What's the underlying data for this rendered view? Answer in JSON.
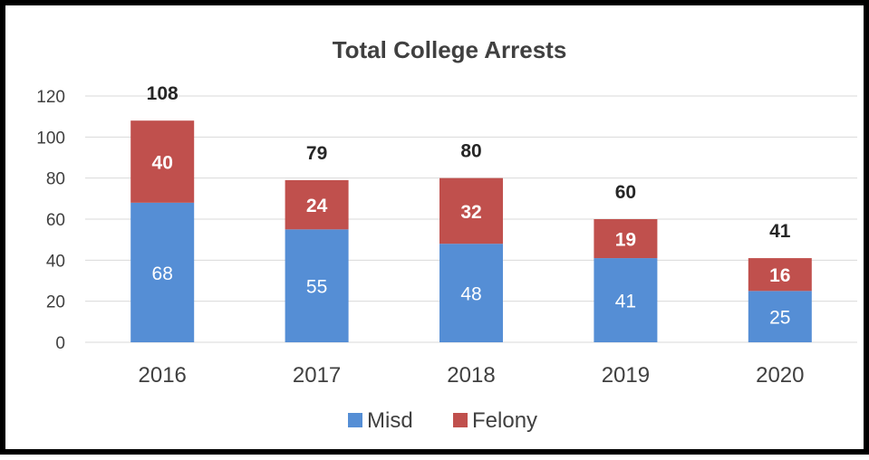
{
  "chart_data": {
    "type": "bar",
    "stacked": true,
    "title": "Total College Arrests",
    "categories": [
      "2016",
      "2017",
      "2018",
      "2019",
      "2020"
    ],
    "series": [
      {
        "name": "Misd",
        "values": [
          68,
          55,
          48,
          41,
          25
        ],
        "color": "#558ed5"
      },
      {
        "name": "Felony",
        "values": [
          40,
          24,
          32,
          19,
          16
        ],
        "color": "#c0504d"
      }
    ],
    "totals": [
      108,
      79,
      80,
      60,
      41
    ],
    "ylim": [
      0,
      120
    ],
    "yticks": [
      0,
      20,
      40,
      60,
      80,
      100,
      120
    ],
    "grid": true,
    "legend_position": "bottom"
  }
}
